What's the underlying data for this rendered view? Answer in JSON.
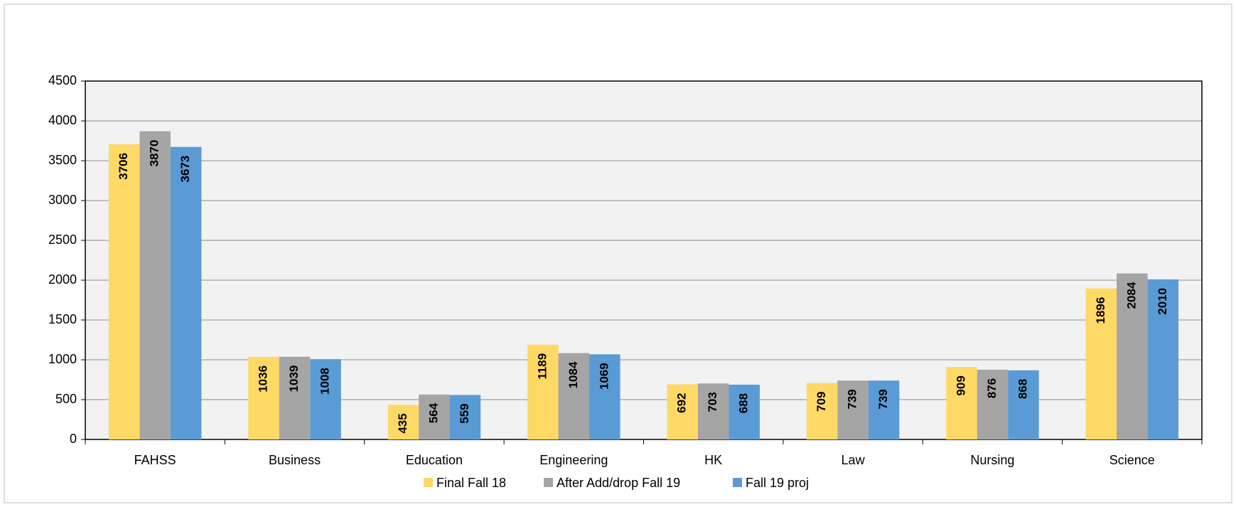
{
  "chart_data": {
    "type": "bar",
    "categories": [
      "FAHSS",
      "Business",
      "Education",
      "Engineering",
      "HK",
      "Law",
      "Nursing",
      "Science"
    ],
    "series": [
      {
        "name": "Final Fall 18",
        "color": "#FFD966",
        "values": [
          3706,
          1036,
          435,
          1189,
          692,
          709,
          909,
          1896
        ]
      },
      {
        "name": "After Add/drop Fall 19",
        "color": "#A5A5A5",
        "values": [
          3870,
          1039,
          564,
          1084,
          703,
          739,
          876,
          2084
        ]
      },
      {
        "name": "Fall 19 proj",
        "color": "#5B9BD5",
        "values": [
          3673,
          1008,
          559,
          1069,
          688,
          739,
          868,
          2010
        ]
      }
    ],
    "ylim": [
      0,
      4500
    ],
    "yticks": [
      0,
      500,
      1000,
      1500,
      2000,
      2500,
      3000,
      3500,
      4000,
      4500
    ],
    "grid": true,
    "legend": "bottom"
  }
}
